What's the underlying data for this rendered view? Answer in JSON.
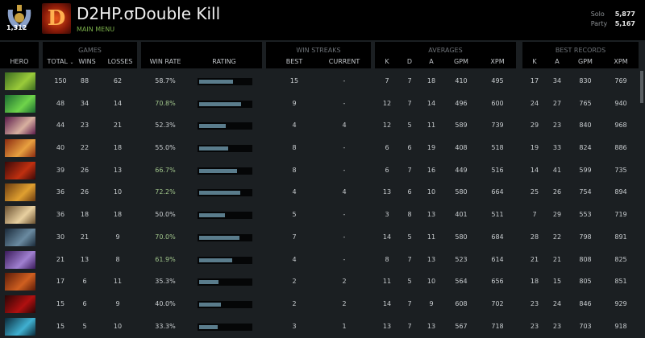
{
  "profile": {
    "medal_value": "1,312",
    "name": "D2HP.σDouble Kill",
    "main_menu": "MAIN MENU",
    "solo_label": "Solo",
    "solo_mmr": "5,877",
    "party_label": "Party",
    "party_mmr": "5,167"
  },
  "headers": {
    "games": "GAMES",
    "win_streaks": "WIN STREAKS",
    "averages": "AVERAGES",
    "best_records": "BEST RECORDS",
    "hero": "HERO",
    "total": "TOTAL",
    "wins": "WINS",
    "losses": "LOSSES",
    "win_rate": "WIN RATE",
    "rating": "RATING",
    "best": "BEST",
    "current": "CURRENT",
    "k": "K",
    "d": "D",
    "a": "A",
    "gpm": "GPM",
    "xpm": "XPM",
    "bk": "K",
    "ba": "A",
    "bgpm": "GPM",
    "bxpm": "XPM"
  },
  "sort_icon": "chevron-down-icon",
  "rows": [
    {
      "c": [
        "#3a6a20",
        "#9acb3a"
      ],
      "total": "150",
      "wins": "88",
      "losses": "62",
      "wr": "58.7%",
      "rating": 0.66,
      "best": "15",
      "cur": "-",
      "k": "7",
      "d": "7",
      "a": "18",
      "gpm": "410",
      "xpm": "495",
      "bk": "17",
      "ba": "34",
      "bgpm": "830",
      "bxpm": "769"
    },
    {
      "c": [
        "#1a6a30",
        "#6fd44a"
      ],
      "total": "48",
      "wins": "34",
      "losses": "14",
      "wr": "70.8%",
      "rating": 0.82,
      "best": "9",
      "cur": "-",
      "k": "12",
      "d": "7",
      "a": "14",
      "gpm": "496",
      "xpm": "600",
      "bk": "24",
      "ba": "27",
      "bgpm": "765",
      "bxpm": "940"
    },
    {
      "c": [
        "#5a1a4a",
        "#d8b0a0"
      ],
      "total": "44",
      "wins": "23",
      "losses": "21",
      "wr": "52.3%",
      "rating": 0.52,
      "best": "4",
      "cur": "4",
      "k": "12",
      "d": "5",
      "a": "11",
      "gpm": "589",
      "xpm": "739",
      "bk": "29",
      "ba": "23",
      "bgpm": "840",
      "bxpm": "968"
    },
    {
      "c": [
        "#8a2a10",
        "#e8a040"
      ],
      "total": "40",
      "wins": "22",
      "losses": "18",
      "wr": "55.0%",
      "rating": 0.56,
      "best": "8",
      "cur": "-",
      "k": "6",
      "d": "6",
      "a": "19",
      "gpm": "408",
      "xpm": "518",
      "bk": "19",
      "ba": "33",
      "bgpm": "824",
      "bxpm": "886"
    },
    {
      "c": [
        "#3a0808",
        "#c03010"
      ],
      "total": "39",
      "wins": "26",
      "losses": "13",
      "wr": "66.7%",
      "rating": 0.74,
      "best": "8",
      "cur": "-",
      "k": "6",
      "d": "7",
      "a": "16",
      "gpm": "449",
      "xpm": "516",
      "bk": "14",
      "ba": "41",
      "bgpm": "599",
      "bxpm": "735"
    },
    {
      "c": [
        "#6a3a10",
        "#e0a030"
      ],
      "total": "36",
      "wins": "26",
      "losses": "10",
      "wr": "72.2%",
      "rating": 0.8,
      "best": "4",
      "cur": "4",
      "k": "13",
      "d": "6",
      "a": "10",
      "gpm": "580",
      "xpm": "664",
      "bk": "25",
      "ba": "26",
      "bgpm": "754",
      "bxpm": "894"
    },
    {
      "c": [
        "#6a5030",
        "#e8d0a0"
      ],
      "total": "36",
      "wins": "18",
      "losses": "18",
      "wr": "50.0%",
      "rating": 0.5,
      "best": "5",
      "cur": "-",
      "k": "3",
      "d": "8",
      "a": "13",
      "gpm": "401",
      "xpm": "511",
      "bk": "7",
      "ba": "29",
      "bgpm": "553",
      "bxpm": "719"
    },
    {
      "c": [
        "#1a2a3a",
        "#6a8aa0"
      ],
      "total": "30",
      "wins": "21",
      "losses": "9",
      "wr": "70.0%",
      "rating": 0.78,
      "best": "7",
      "cur": "-",
      "k": "14",
      "d": "5",
      "a": "11",
      "gpm": "580",
      "xpm": "684",
      "bk": "28",
      "ba": "22",
      "bgpm": "798",
      "bxpm": "891"
    },
    {
      "c": [
        "#3a1a5a",
        "#a080d0"
      ],
      "total": "21",
      "wins": "13",
      "losses": "8",
      "wr": "61.9%",
      "rating": 0.64,
      "best": "4",
      "cur": "-",
      "k": "8",
      "d": "7",
      "a": "13",
      "gpm": "523",
      "xpm": "614",
      "bk": "21",
      "ba": "21",
      "bgpm": "808",
      "bxpm": "825"
    },
    {
      "c": [
        "#5a1a08",
        "#d06020"
      ],
      "total": "17",
      "wins": "6",
      "losses": "11",
      "wr": "35.3%",
      "rating": 0.38,
      "best": "2",
      "cur": "2",
      "k": "11",
      "d": "5",
      "a": "10",
      "gpm": "564",
      "xpm": "656",
      "bk": "18",
      "ba": "15",
      "bgpm": "805",
      "bxpm": "851"
    },
    {
      "c": [
        "#2a0505",
        "#b01010"
      ],
      "total": "15",
      "wins": "6",
      "losses": "9",
      "wr": "40.0%",
      "rating": 0.42,
      "best": "2",
      "cur": "2",
      "k": "14",
      "d": "7",
      "a": "9",
      "gpm": "608",
      "xpm": "702",
      "bk": "23",
      "ba": "24",
      "bgpm": "846",
      "bxpm": "929"
    },
    {
      "c": [
        "#0a2a3a",
        "#40b0d0"
      ],
      "total": "15",
      "wins": "5",
      "losses": "10",
      "wr": "33.3%",
      "rating": 0.36,
      "best": "3",
      "cur": "1",
      "k": "13",
      "d": "7",
      "a": "13",
      "gpm": "567",
      "xpm": "718",
      "bk": "23",
      "ba": "23",
      "bgpm": "703",
      "bxpm": "918"
    }
  ]
}
